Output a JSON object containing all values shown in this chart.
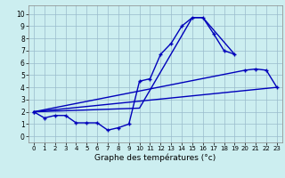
{
  "background_color": "#cceef0",
  "grid_color": "#99bbcc",
  "line_color": "#0000bb",
  "xlabel": "Graphe des températures (°c)",
  "xlim": [
    -0.5,
    23.5
  ],
  "ylim": [
    -0.5,
    10.7
  ],
  "xticks": [
    0,
    1,
    2,
    3,
    4,
    5,
    6,
    7,
    8,
    9,
    10,
    11,
    12,
    13,
    14,
    15,
    16,
    17,
    18,
    19,
    20,
    21,
    22,
    23
  ],
  "yticks": [
    0,
    1,
    2,
    3,
    4,
    5,
    6,
    7,
    8,
    9,
    10
  ],
  "curve1_x": [
    0,
    1,
    2,
    3,
    4,
    5,
    6,
    7,
    8,
    9,
    10,
    11,
    12,
    13,
    14,
    15,
    16,
    17,
    18,
    19
  ],
  "curve1_y": [
    2.0,
    1.5,
    1.7,
    1.7,
    1.1,
    1.1,
    1.1,
    0.5,
    0.7,
    1.0,
    4.5,
    4.7,
    6.7,
    7.6,
    9.0,
    9.7,
    9.7,
    8.4,
    7.0,
    6.7
  ],
  "curve2_x": [
    0,
    10,
    15,
    16,
    19
  ],
  "curve2_y": [
    2.0,
    2.3,
    9.7,
    9.7,
    6.7
  ],
  "curve3_x": [
    0,
    20,
    21,
    22,
    23
  ],
  "curve3_y": [
    2.0,
    5.4,
    5.5,
    5.4,
    4.0
  ],
  "curve4_x": [
    0,
    23
  ],
  "curve4_y": [
    2.0,
    4.0
  ]
}
